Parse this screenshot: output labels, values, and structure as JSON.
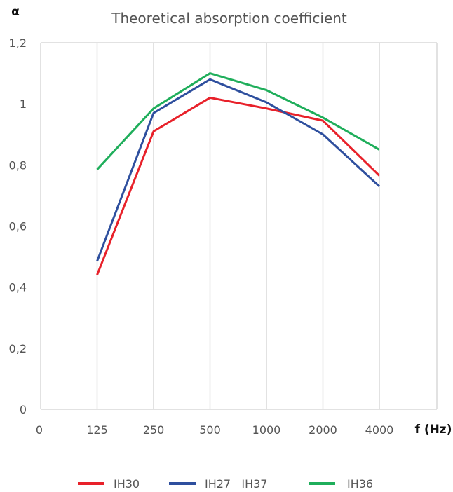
{
  "chart_data": {
    "type": "line",
    "title": "Theoretical absorption coefficient",
    "ylabel": "α",
    "xlabel": "f (Hz)",
    "x_tick_labels": [
      "0",
      "125",
      "250",
      "500",
      "1000",
      "2000",
      "4000"
    ],
    "categories": [
      "125",
      "250",
      "500",
      "1000",
      "2000",
      "4000"
    ],
    "y_tick_labels": [
      "0",
      "0,2",
      "0,4",
      "0,6",
      "0,8",
      "1",
      "1,2"
    ],
    "ylim": [
      0,
      1.2
    ],
    "grid": true,
    "legend_position": "bottom",
    "series": [
      {
        "name": "IH30",
        "color": "#e8212a",
        "values": [
          0.44,
          0.91,
          1.02,
          0.985,
          0.945,
          0.765
        ]
      },
      {
        "name": "IH27   IH37",
        "color": "#2e4f9e",
        "values": [
          0.485,
          0.97,
          1.08,
          1.005,
          0.9,
          0.73
        ]
      },
      {
        "name": "IH36",
        "color": "#1fae5b",
        "values": [
          0.785,
          0.985,
          1.1,
          1.045,
          0.955,
          0.85
        ]
      }
    ]
  }
}
